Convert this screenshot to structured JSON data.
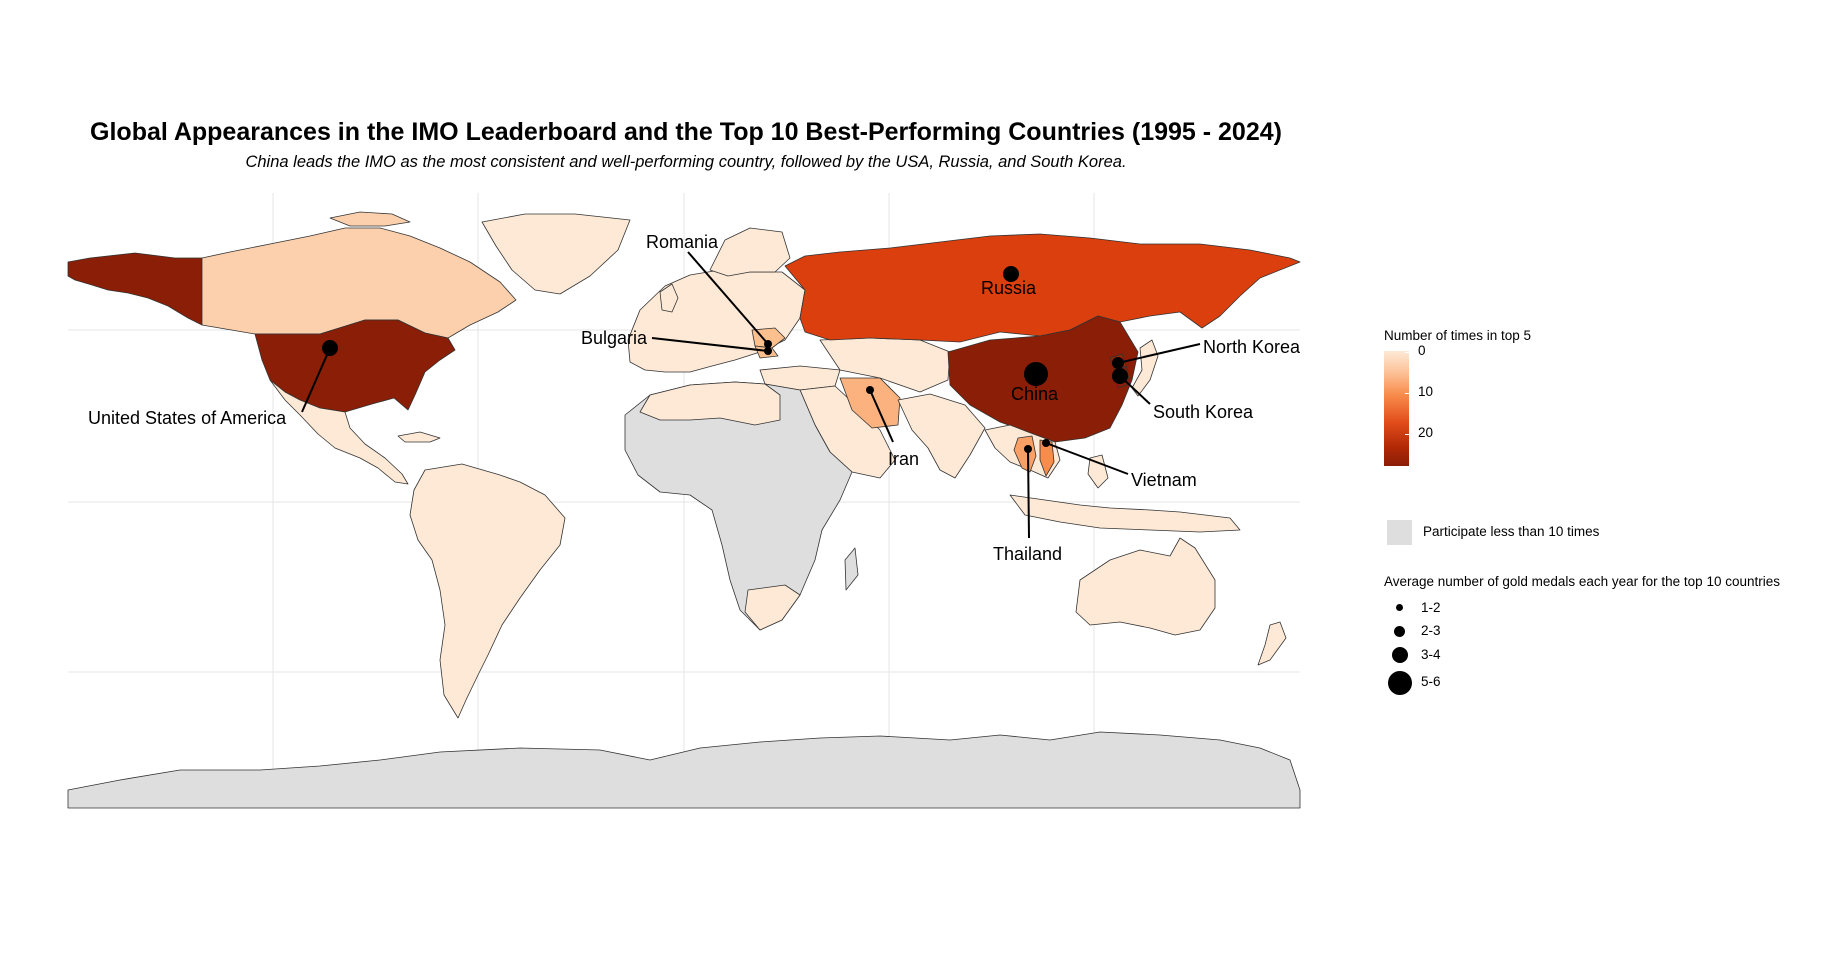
{
  "title": "Global Appearances in the IMO Leaderboard and the Top 10 Best-Performing Countries (1995 - 2024)",
  "subtitle": "China leads the IMO as the most consistent and well-performing country, followed by the USA, Russia, and South Korea.",
  "colors": {
    "low": "#fde9d6",
    "mid": "#f88c4c",
    "high": "#8a1e06",
    "few_participations": "#dedede",
    "country_border": "#333333",
    "grid": "#e6e6e6"
  },
  "legend": {
    "fill_title": "Number of times in top 5",
    "fill_ticks": [
      "0",
      "10",
      "20"
    ],
    "grey_label": "Participate less than 10 times",
    "size_title": "Average number of gold medals each year for the top 10 countries",
    "size_levels": [
      "1-2",
      "2-3",
      "3-4",
      "5-6"
    ]
  },
  "countries": [
    {
      "name": "United States of America",
      "top5_count": 23,
      "gold_band": "3-4"
    },
    {
      "name": "Russia",
      "top5_count": 17,
      "gold_band": "3-4"
    },
    {
      "name": "China",
      "top5_count": 24,
      "gold_band": "5-6"
    },
    {
      "name": "South Korea",
      "top5_count": 22,
      "gold_band": "3-4"
    },
    {
      "name": "North Korea",
      "top5_count": 20,
      "gold_band": "2-3"
    },
    {
      "name": "Romania",
      "top5_count": 8,
      "gold_band": "1-2"
    },
    {
      "name": "Bulgaria",
      "top5_count": 8,
      "gold_band": "1-2"
    },
    {
      "name": "Iran",
      "top5_count": 7,
      "gold_band": "1-2"
    },
    {
      "name": "Vietnam",
      "top5_count": 10,
      "gold_band": "1-2"
    },
    {
      "name": "Thailand",
      "top5_count": 9,
      "gold_band": "1-2"
    }
  ]
}
